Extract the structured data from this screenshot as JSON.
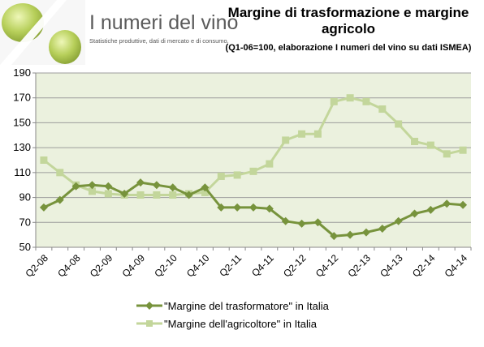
{
  "brand": {
    "title": "I numeri del vino",
    "subtitle": "Statistiche produttive, dati di mercato e di consumo,"
  },
  "chart_data": {
    "type": "line",
    "title": "Margine di trasformazione e margine agricolo",
    "subtitle": "(Q1-06=100, elaborazione I numeri del vino su dati ISMEA)",
    "xlabel": "",
    "ylabel": "",
    "ylim": [
      50,
      190
    ],
    "yticks": [
      50,
      70,
      90,
      110,
      130,
      150,
      170,
      190
    ],
    "categories": [
      "Q2-08",
      "Q3-08",
      "Q4-08",
      "Q1-09",
      "Q2-09",
      "Q3-09",
      "Q4-09",
      "Q1-10",
      "Q2-10",
      "Q3-10",
      "Q4-10",
      "Q1-11",
      "Q2-11",
      "Q3-11",
      "Q4-11",
      "Q1-12",
      "Q2-12",
      "Q3-12",
      "Q4-12",
      "Q1-13",
      "Q2-13",
      "Q3-13",
      "Q4-13",
      "Q1-14",
      "Q2-14",
      "Q3-14",
      "Q4-14"
    ],
    "tick_labels": [
      "Q2-08",
      "Q4-08",
      "Q2-09",
      "Q4-09",
      "Q2-10",
      "Q4-10",
      "Q2-11",
      "Q4-11",
      "Q2-12",
      "Q4-12",
      "Q2-13",
      "Q4-13",
      "Q2-14",
      "Q4-14"
    ],
    "grid": true,
    "legend_position": "bottom",
    "series": [
      {
        "name": "\"Margine del trasformatore\" in Italia",
        "color": "#77933c",
        "marker": "diamond",
        "values": [
          82,
          88,
          99,
          100,
          99,
          93,
          102,
          100,
          98,
          92,
          98,
          82,
          82,
          82,
          81,
          71,
          69,
          70,
          59,
          60,
          62,
          65,
          71,
          77,
          80,
          85,
          84
        ]
      },
      {
        "name": "\"Margine dell'agricoltore\" in Italia",
        "color": "#c3d69b",
        "marker": "square",
        "values": [
          120,
          110,
          100,
          95,
          93,
          92,
          92,
          92,
          92,
          93,
          94,
          107,
          108,
          111,
          117,
          136,
          141,
          141,
          167,
          170,
          167,
          161,
          149,
          135,
          132,
          125,
          128
        ]
      }
    ]
  }
}
